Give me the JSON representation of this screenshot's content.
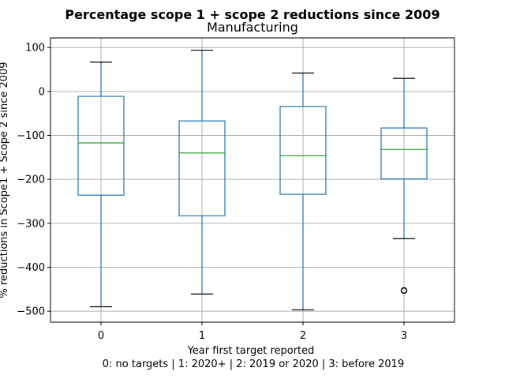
{
  "chart_data": {
    "type": "box",
    "title": "Percentage scope 1 + scope 2 reductions since 2009",
    "subtitle": "Manufacturing",
    "xlabel": "Year first target reported",
    "xlabel_line2": "0: no targets | 1: 2020+ | 2: 2019 or 2020 | 3: before 2019",
    "ylabel": "% reductions in Scope1 + Scope 2 since 2009",
    "categories": [
      "0",
      "1",
      "2",
      "3"
    ],
    "ylim": [
      -525,
      122
    ],
    "yticks": [
      100,
      0,
      -100,
      -200,
      -300,
      -400,
      -500
    ],
    "ytick_labels": [
      "100",
      "0",
      "−100",
      "−200",
      "−300",
      "−400",
      "−500"
    ],
    "grid": true,
    "box_color": "#1f77b4",
    "median_color": "#2ca02c",
    "boxes": [
      {
        "category": "0",
        "whisker_high": 67,
        "q3": -11,
        "median": -117,
        "q1": -236,
        "whisker_low": -490,
        "outliers": []
      },
      {
        "category": "1",
        "whisker_high": 94,
        "q3": -67,
        "median": -140,
        "q1": -283,
        "whisker_low": -461,
        "outliers": []
      },
      {
        "category": "2",
        "whisker_high": 42,
        "q3": -34,
        "median": -146,
        "q1": -234,
        "whisker_low": -497,
        "outliers": []
      },
      {
        "category": "3",
        "whisker_high": 30,
        "q3": -83,
        "median": -132,
        "q1": -199,
        "whisker_low": -335,
        "outliers": [
          -453
        ]
      }
    ]
  }
}
